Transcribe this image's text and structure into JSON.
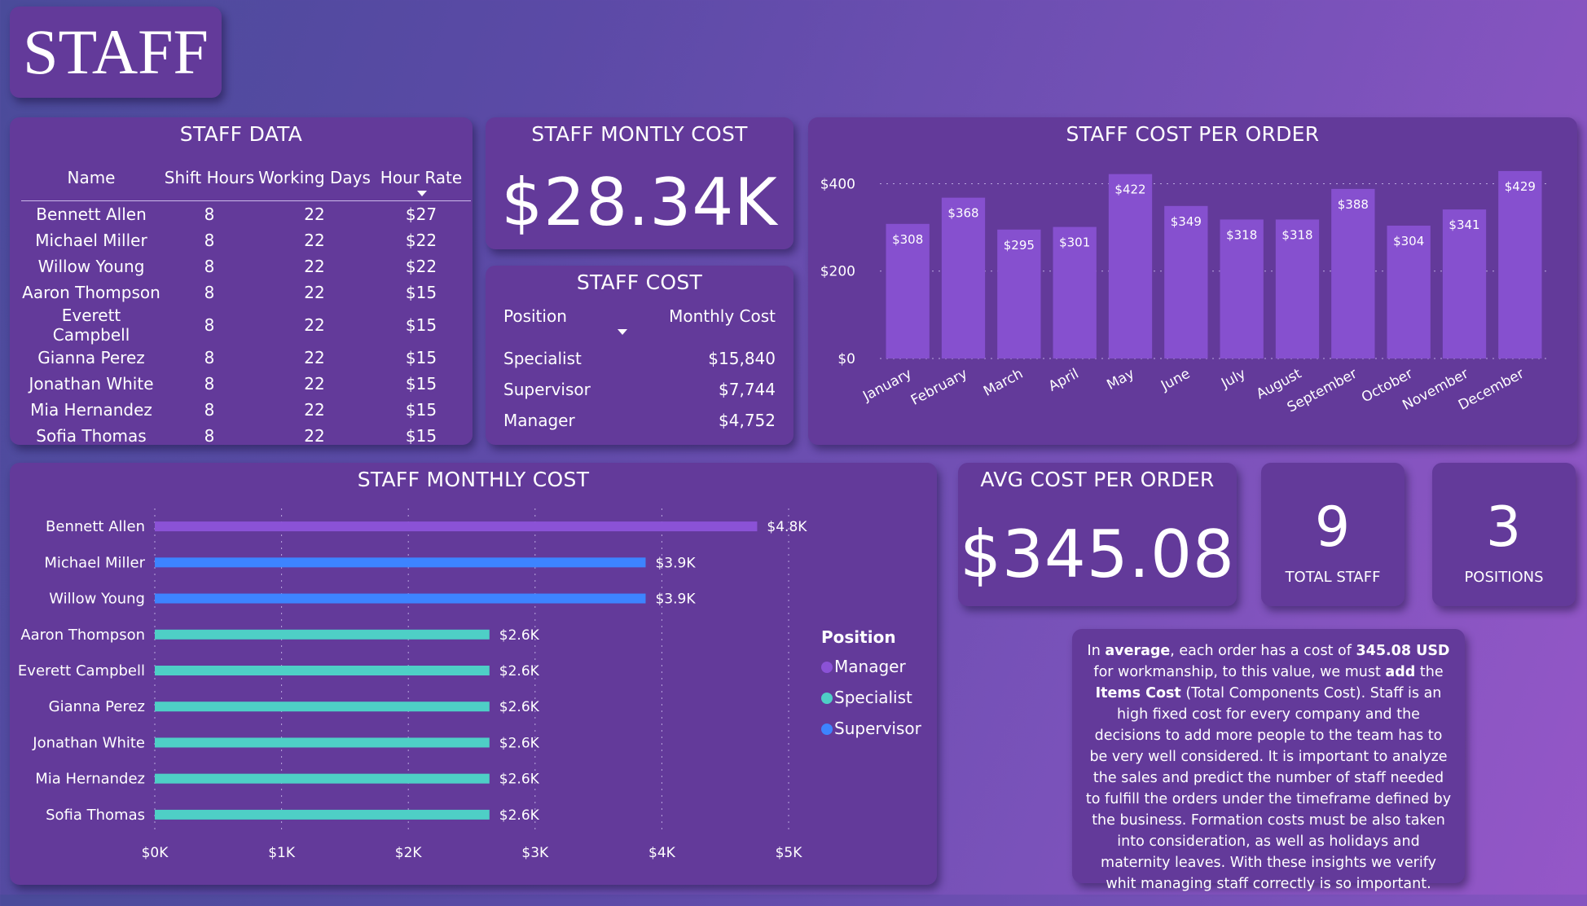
{
  "page_title": "STAFF",
  "staff_data": {
    "title": "STAFF DATA",
    "columns": [
      "Name",
      "Shift Hours",
      "Working Days",
      "Hour Rate"
    ],
    "rows": [
      [
        "Bennett Allen",
        "8",
        "22",
        "$27"
      ],
      [
        "Michael Miller",
        "8",
        "22",
        "$22"
      ],
      [
        "Willow Young",
        "8",
        "22",
        "$22"
      ],
      [
        "Aaron Thompson",
        "8",
        "22",
        "$15"
      ],
      [
        "Everett Campbell",
        "8",
        "22",
        "$15"
      ],
      [
        "Gianna Perez",
        "8",
        "22",
        "$15"
      ],
      [
        "Jonathan White",
        "8",
        "22",
        "$15"
      ],
      [
        "Mia Hernandez",
        "8",
        "22",
        "$15"
      ],
      [
        "Sofia Thomas",
        "8",
        "22",
        "$15"
      ]
    ]
  },
  "monthly_cost_kpi": {
    "title": "STAFF MONTLY COST",
    "value": "$28.34K"
  },
  "staff_cost": {
    "title": "STAFF COST",
    "col_position": "Position",
    "col_monthly": "Monthly Cost",
    "rows": [
      {
        "position": "Specialist",
        "cost": "$15,840"
      },
      {
        "position": "Supervisor",
        "cost": "$7,744"
      },
      {
        "position": "Manager",
        "cost": "$4,752"
      }
    ]
  },
  "avg_cost_kpi": {
    "title": "AVG COST PER ORDER",
    "value": "$345.08"
  },
  "total_staff_kpi": {
    "value": "9",
    "label": "TOTAL STAFF"
  },
  "positions_kpi": {
    "value": "3",
    "label": "POSITIONS"
  },
  "description": {
    "p1": "In ",
    "b1": "average",
    "p2": ", each order has a cost of ",
    "b2": "345.08 USD",
    "p3": " for workmanship, to this value, we must ",
    "b3": "add",
    "p4": " the ",
    "b4": "Items Cost",
    "p5": " (Total Components Cost). Staff is an high fixed cost for every company and the decisions to add more people to the team has to be very well considered. It is important to analyze the sales and predict the number of staff needed to fulfill the orders under the timeframe defined by the business. Formation costs must be also taken into consideration, as well as holidays and maternity leaves. With these insights we verify whit managing staff correctly is so important."
  },
  "colors": {
    "manager": "#8b52d6",
    "specialist": "#4ecfc6",
    "supervisor": "#3d84ff",
    "column_bar": "#8650cf"
  },
  "chart_data": [
    {
      "type": "bar",
      "title": "STAFF COST PER ORDER",
      "categories": [
        "January",
        "February",
        "March",
        "April",
        "May",
        "June",
        "July",
        "August",
        "September",
        "October",
        "November",
        "December"
      ],
      "values": [
        308,
        368,
        295,
        301,
        422,
        349,
        318,
        318,
        388,
        304,
        341,
        429
      ],
      "data_labels": [
        "$308",
        "$368",
        "$295",
        "$301",
        "$422",
        "$349",
        "$318",
        "$318",
        "$388",
        "$304",
        "$341",
        "$429"
      ],
      "y_ticks": [
        "$0",
        "$200",
        "$400"
      ],
      "y_tick_values": [
        0,
        200,
        400
      ],
      "ylim": [
        0,
        440
      ]
    },
    {
      "type": "bar",
      "orientation": "horizontal",
      "title": "STAFF MONTHLY COST",
      "categories": [
        "Bennett Allen",
        "Michael Miller",
        "Willow Young",
        "Aaron Thompson",
        "Everett Campbell",
        "Gianna Perez",
        "Jonathan White",
        "Mia Hernandez",
        "Sofia Thomas"
      ],
      "values": [
        4752,
        3872,
        3872,
        2640,
        2640,
        2640,
        2640,
        2640,
        2640
      ],
      "data_labels": [
        "$4.8K",
        "$3.9K",
        "$3.9K",
        "$2.6K",
        "$2.6K",
        "$2.6K",
        "$2.6K",
        "$2.6K",
        "$2.6K"
      ],
      "series_position": [
        "Manager",
        "Supervisor",
        "Supervisor",
        "Specialist",
        "Specialist",
        "Specialist",
        "Specialist",
        "Specialist",
        "Specialist"
      ],
      "x_ticks": [
        "$0K",
        "$1K",
        "$2K",
        "$3K",
        "$4K",
        "$5K"
      ],
      "x_tick_values": [
        0,
        1000,
        2000,
        3000,
        4000,
        5000
      ],
      "xlim": [
        0,
        5000
      ],
      "legend_title": "Position",
      "legend": [
        "Manager",
        "Specialist",
        "Supervisor"
      ]
    }
  ]
}
